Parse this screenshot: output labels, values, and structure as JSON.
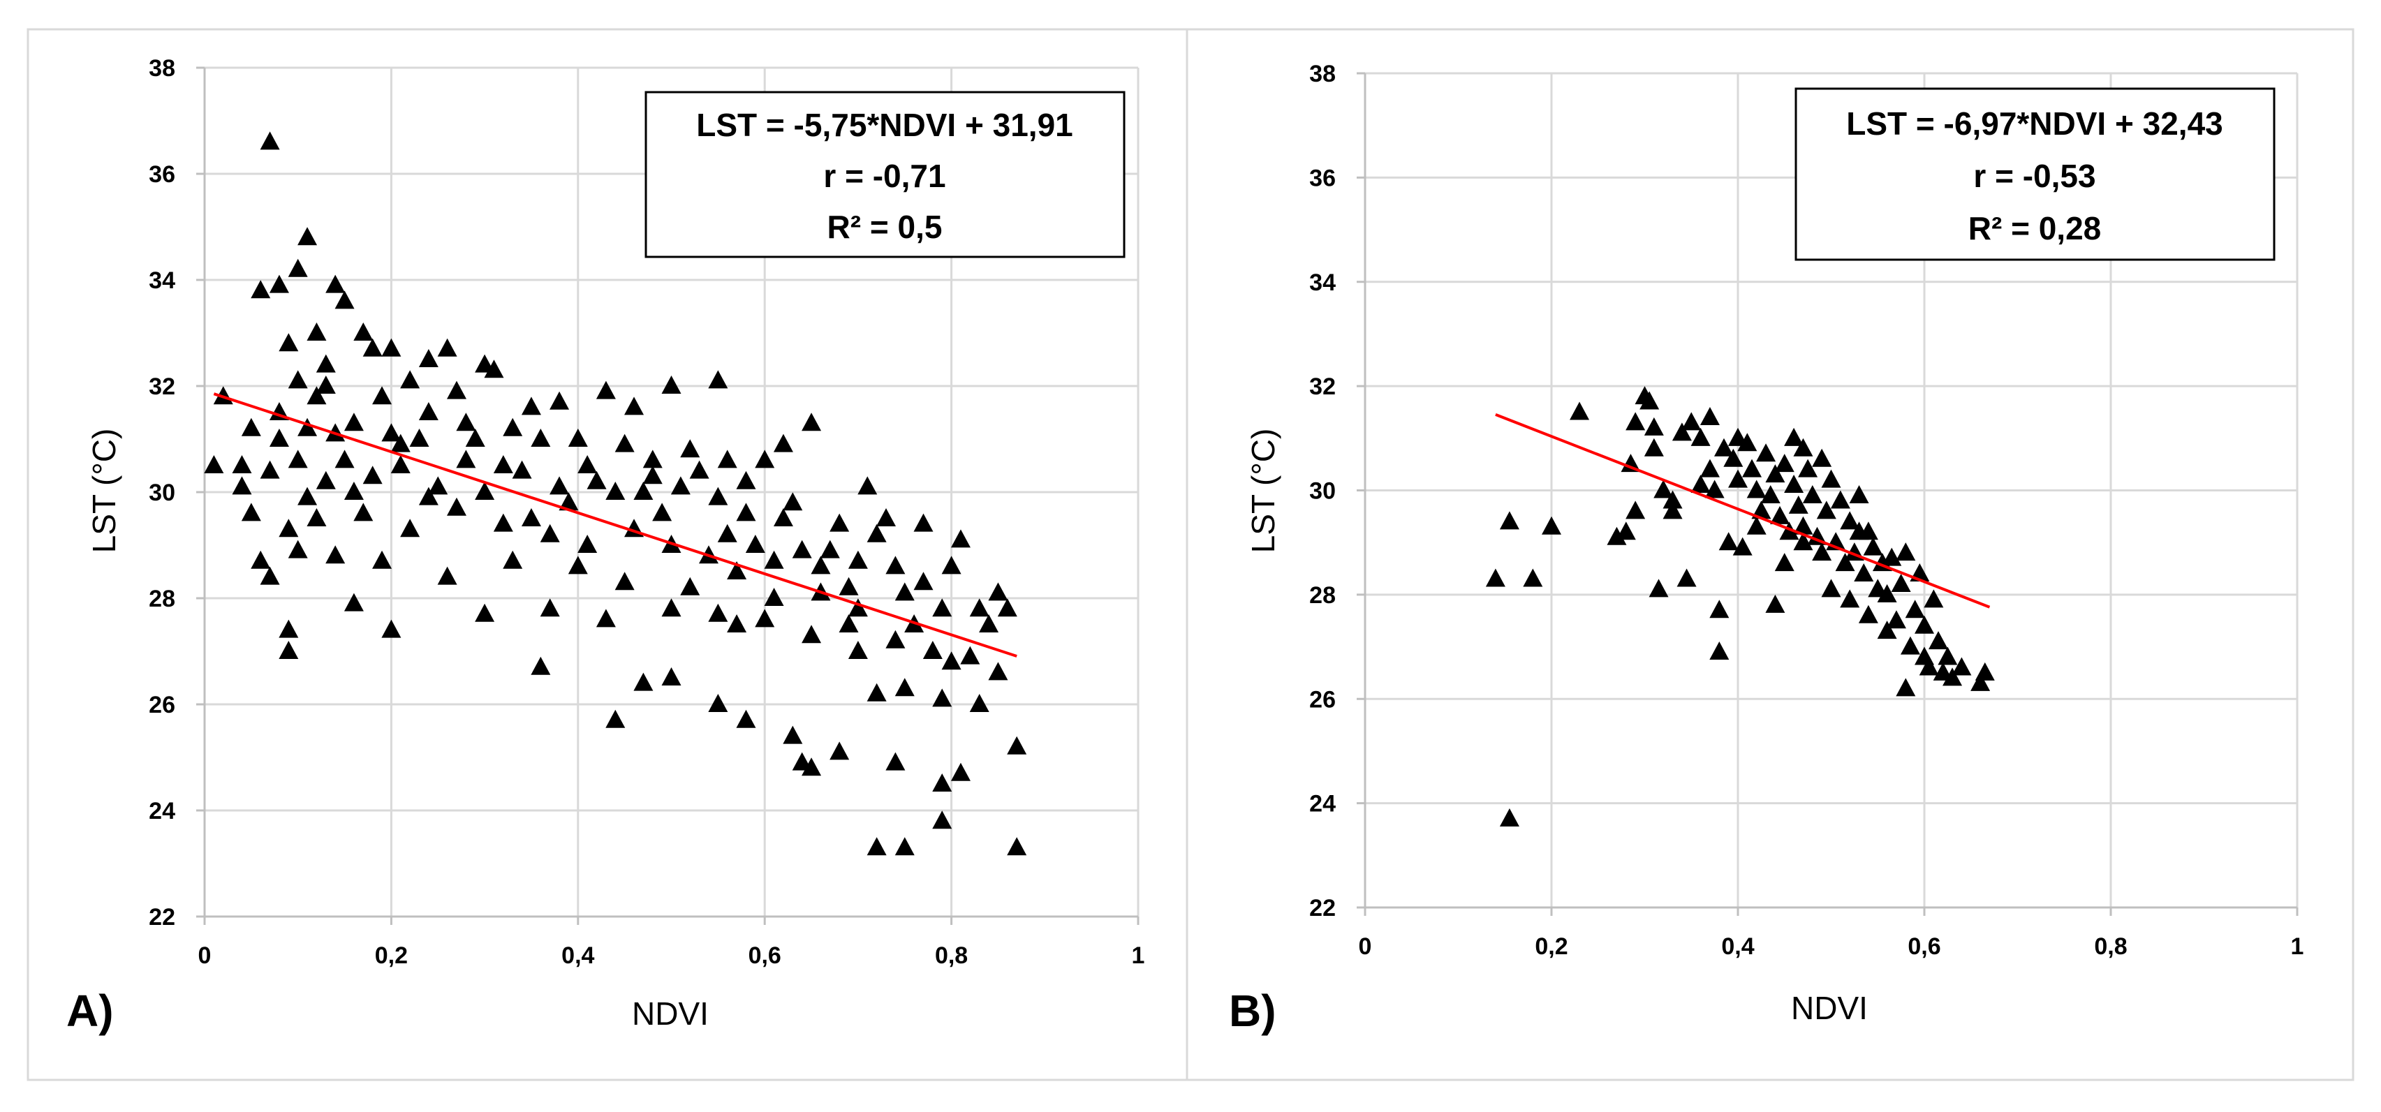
{
  "chart_data": [
    {
      "type": "scatter",
      "panel_label": "A)",
      "xlabel": "NDVI",
      "ylabel": "LST (°C)",
      "xlim": [
        0,
        1
      ],
      "ylim": [
        22,
        38
      ],
      "x_ticks": [
        "0",
        "0,2",
        "0,4",
        "0,6",
        "0,8",
        "1"
      ],
      "y_ticks": [
        "22",
        "24",
        "26",
        "28",
        "30",
        "32",
        "34",
        "36",
        "38"
      ],
      "grid": true,
      "annotation": [
        "LST = -5,75*NDVI + 31,91",
        "r = -0,71",
        "R² = 0,5"
      ],
      "trendline": {
        "slope": -5.75,
        "intercept": 31.91,
        "x_range": [
          0.01,
          0.87
        ],
        "color": "#ff0000"
      },
      "marker": "triangle",
      "points": [
        [
          0.07,
          36.6
        ],
        [
          0.11,
          34.8
        ],
        [
          0.1,
          34.2
        ],
        [
          0.06,
          33.8
        ],
        [
          0.08,
          33.9
        ],
        [
          0.14,
          33.9
        ],
        [
          0.15,
          33.6
        ],
        [
          0.12,
          33.0
        ],
        [
          0.17,
          33.0
        ],
        [
          0.2,
          32.7
        ],
        [
          0.18,
          32.7
        ],
        [
          0.24,
          32.5
        ],
        [
          0.26,
          32.7
        ],
        [
          0.3,
          32.4
        ],
        [
          0.31,
          32.3
        ],
        [
          0.09,
          32.8
        ],
        [
          0.13,
          32.4
        ],
        [
          0.1,
          32.1
        ],
        [
          0.22,
          32.1
        ],
        [
          0.27,
          31.9
        ],
        [
          0.35,
          31.6
        ],
        [
          0.38,
          31.7
        ],
        [
          0.43,
          31.9
        ],
        [
          0.46,
          31.6
        ],
        [
          0.5,
          32.0
        ],
        [
          0.55,
          32.1
        ],
        [
          0.02,
          31.8
        ],
        [
          0.05,
          31.2
        ],
        [
          0.08,
          31.5
        ],
        [
          0.12,
          31.8
        ],
        [
          0.16,
          31.3
        ],
        [
          0.2,
          31.1
        ],
        [
          0.23,
          31.0
        ],
        [
          0.28,
          31.3
        ],
        [
          0.33,
          31.2
        ],
        [
          0.36,
          31.0
        ],
        [
          0.4,
          31.0
        ],
        [
          0.45,
          30.9
        ],
        [
          0.48,
          30.6
        ],
        [
          0.52,
          30.8
        ],
        [
          0.56,
          30.6
        ],
        [
          0.6,
          30.6
        ],
        [
          0.62,
          30.9
        ],
        [
          0.65,
          31.3
        ],
        [
          0.01,
          30.5
        ],
        [
          0.04,
          30.1
        ],
        [
          0.07,
          30.4
        ],
        [
          0.1,
          30.6
        ],
        [
          0.13,
          30.2
        ],
        [
          0.15,
          30.6
        ],
        [
          0.18,
          30.3
        ],
        [
          0.21,
          30.5
        ],
        [
          0.25,
          30.1
        ],
        [
          0.3,
          30.0
        ],
        [
          0.34,
          30.4
        ],
        [
          0.38,
          30.1
        ],
        [
          0.42,
          30.2
        ],
        [
          0.47,
          30.0
        ],
        [
          0.51,
          30.1
        ],
        [
          0.55,
          29.9
        ],
        [
          0.58,
          29.6
        ],
        [
          0.63,
          29.8
        ],
        [
          0.68,
          29.4
        ],
        [
          0.71,
          30.1
        ],
        [
          0.05,
          29.6
        ],
        [
          0.09,
          29.3
        ],
        [
          0.12,
          29.5
        ],
        [
          0.17,
          29.6
        ],
        [
          0.22,
          29.3
        ],
        [
          0.27,
          29.7
        ],
        [
          0.32,
          29.4
        ],
        [
          0.37,
          29.2
        ],
        [
          0.41,
          29.0
        ],
        [
          0.46,
          29.3
        ],
        [
          0.5,
          29.0
        ],
        [
          0.54,
          28.8
        ],
        [
          0.59,
          29.0
        ],
        [
          0.64,
          28.9
        ],
        [
          0.7,
          28.7
        ],
        [
          0.74,
          28.6
        ],
        [
          0.77,
          29.4
        ],
        [
          0.81,
          29.1
        ],
        [
          0.06,
          28.7
        ],
        [
          0.1,
          28.9
        ],
        [
          0.14,
          28.8
        ],
        [
          0.19,
          28.7
        ],
        [
          0.26,
          28.4
        ],
        [
          0.33,
          28.7
        ],
        [
          0.4,
          28.6
        ],
        [
          0.45,
          28.3
        ],
        [
          0.52,
          28.2
        ],
        [
          0.57,
          28.5
        ],
        [
          0.61,
          28.0
        ],
        [
          0.66,
          28.1
        ],
        [
          0.7,
          27.8
        ],
        [
          0.75,
          28.1
        ],
        [
          0.79,
          27.8
        ],
        [
          0.83,
          27.8
        ],
        [
          0.86,
          27.8
        ],
        [
          0.07,
          28.4
        ],
        [
          0.16,
          27.9
        ],
        [
          0.3,
          27.7
        ],
        [
          0.37,
          27.8
        ],
        [
          0.43,
          27.6
        ],
        [
          0.5,
          27.8
        ],
        [
          0.55,
          27.7
        ],
        [
          0.6,
          27.6
        ],
        [
          0.65,
          27.3
        ],
        [
          0.7,
          27.0
        ],
        [
          0.74,
          27.2
        ],
        [
          0.78,
          27.0
        ],
        [
          0.82,
          26.9
        ],
        [
          0.85,
          26.6
        ],
        [
          0.09,
          27.4
        ],
        [
          0.09,
          27.0
        ],
        [
          0.2,
          27.4
        ],
        [
          0.36,
          26.7
        ],
        [
          0.44,
          25.7
        ],
        [
          0.47,
          26.4
        ],
        [
          0.5,
          26.5
        ],
        [
          0.55,
          26.0
        ],
        [
          0.58,
          25.7
        ],
        [
          0.63,
          25.4
        ],
        [
          0.64,
          24.9
        ],
        [
          0.68,
          25.1
        ],
        [
          0.72,
          26.2
        ],
        [
          0.75,
          26.3
        ],
        [
          0.79,
          26.1
        ],
        [
          0.83,
          26.0
        ],
        [
          0.87,
          25.2
        ],
        [
          0.72,
          23.3
        ],
        [
          0.75,
          23.3
        ],
        [
          0.79,
          23.8
        ],
        [
          0.79,
          24.5
        ],
        [
          0.81,
          24.7
        ],
        [
          0.87,
          23.3
        ],
        [
          0.74,
          24.9
        ],
        [
          0.65,
          24.8
        ],
        [
          0.57,
          27.5
        ],
        [
          0.69,
          28.2
        ],
        [
          0.72,
          29.2
        ],
        [
          0.28,
          30.6
        ],
        [
          0.24,
          31.5
        ],
        [
          0.19,
          31.8
        ],
        [
          0.14,
          31.1
        ],
        [
          0.11,
          29.9
        ],
        [
          0.35,
          29.5
        ],
        [
          0.39,
          29.8
        ],
        [
          0.48,
          30.3
        ],
        [
          0.53,
          30.4
        ],
        [
          0.58,
          30.2
        ],
        [
          0.62,
          29.5
        ],
        [
          0.67,
          28.9
        ],
        [
          0.73,
          29.5
        ],
        [
          0.77,
          28.3
        ],
        [
          0.8,
          28.6
        ],
        [
          0.84,
          27.5
        ],
        [
          0.85,
          28.1
        ],
        [
          0.04,
          30.5
        ],
        [
          0.08,
          31.0
        ],
        [
          0.11,
          31.2
        ],
        [
          0.13,
          32.0
        ],
        [
          0.16,
          30.0
        ],
        [
          0.21,
          30.9
        ],
        [
          0.24,
          29.9
        ],
        [
          0.29,
          31.0
        ],
        [
          0.32,
          30.5
        ],
        [
          0.41,
          30.5
        ],
        [
          0.44,
          30.0
        ],
        [
          0.49,
          29.6
        ],
        [
          0.56,
          29.2
        ],
        [
          0.61,
          28.7
        ],
        [
          0.66,
          28.6
        ],
        [
          0.69,
          27.5
        ],
        [
          0.76,
          27.5
        ],
        [
          0.8,
          26.8
        ]
      ]
    },
    {
      "type": "scatter",
      "panel_label": "B)",
      "xlabel": "NDVI",
      "ylabel": "LST (°C)",
      "xlim": [
        0,
        1
      ],
      "ylim": [
        22,
        38
      ],
      "x_ticks": [
        "0",
        "0,2",
        "0,4",
        "0,6",
        "0,8",
        "1"
      ],
      "y_ticks": [
        "22",
        "24",
        "26",
        "28",
        "30",
        "32",
        "34",
        "36",
        "38"
      ],
      "grid": true,
      "annotation": [
        "LST = -6,97*NDVI + 32,43",
        "r = -0,53",
        "R² = 0,28"
      ],
      "trendline": {
        "slope": -6.97,
        "intercept": 32.43,
        "x_range": [
          0.14,
          0.67
        ],
        "color": "#ff0000"
      },
      "marker": "triangle",
      "points": [
        [
          0.155,
          23.7
        ],
        [
          0.14,
          28.3
        ],
        [
          0.155,
          29.4
        ],
        [
          0.18,
          28.3
        ],
        [
          0.2,
          29.3
        ],
        [
          0.23,
          31.5
        ],
        [
          0.27,
          29.1
        ],
        [
          0.28,
          29.2
        ],
        [
          0.285,
          30.5
        ],
        [
          0.29,
          31.3
        ],
        [
          0.29,
          29.6
        ],
        [
          0.3,
          31.8
        ],
        [
          0.305,
          31.7
        ],
        [
          0.31,
          31.2
        ],
        [
          0.31,
          30.8
        ],
        [
          0.315,
          28.1
        ],
        [
          0.32,
          30.0
        ],
        [
          0.33,
          29.8
        ],
        [
          0.34,
          31.1
        ],
        [
          0.345,
          28.3
        ],
        [
          0.35,
          31.3
        ],
        [
          0.36,
          31.0
        ],
        [
          0.37,
          31.4
        ],
        [
          0.37,
          30.4
        ],
        [
          0.375,
          30.0
        ],
        [
          0.38,
          26.9
        ],
        [
          0.38,
          27.7
        ],
        [
          0.385,
          30.8
        ],
        [
          0.39,
          29.0
        ],
        [
          0.395,
          30.6
        ],
        [
          0.4,
          31.0
        ],
        [
          0.4,
          30.2
        ],
        [
          0.405,
          28.9
        ],
        [
          0.41,
          30.9
        ],
        [
          0.415,
          30.4
        ],
        [
          0.42,
          30.0
        ],
        [
          0.425,
          29.6
        ],
        [
          0.43,
          30.7
        ],
        [
          0.435,
          29.9
        ],
        [
          0.44,
          27.8
        ],
        [
          0.44,
          30.3
        ],
        [
          0.445,
          29.5
        ],
        [
          0.45,
          30.5
        ],
        [
          0.455,
          29.2
        ],
        [
          0.46,
          31.0
        ],
        [
          0.46,
          30.1
        ],
        [
          0.465,
          29.7
        ],
        [
          0.47,
          30.8
        ],
        [
          0.47,
          29.3
        ],
        [
          0.475,
          30.4
        ],
        [
          0.48,
          29.9
        ],
        [
          0.485,
          29.1
        ],
        [
          0.49,
          30.6
        ],
        [
          0.49,
          28.8
        ],
        [
          0.495,
          29.6
        ],
        [
          0.5,
          30.2
        ],
        [
          0.5,
          28.1
        ],
        [
          0.505,
          29.0
        ],
        [
          0.51,
          29.8
        ],
        [
          0.515,
          28.6
        ],
        [
          0.52,
          29.4
        ],
        [
          0.52,
          27.9
        ],
        [
          0.525,
          28.8
        ],
        [
          0.53,
          29.9
        ],
        [
          0.535,
          28.4
        ],
        [
          0.54,
          29.2
        ],
        [
          0.54,
          27.6
        ],
        [
          0.545,
          28.9
        ],
        [
          0.55,
          28.1
        ],
        [
          0.555,
          28.6
        ],
        [
          0.56,
          27.3
        ],
        [
          0.565,
          28.7
        ],
        [
          0.57,
          27.5
        ],
        [
          0.575,
          28.2
        ],
        [
          0.58,
          26.2
        ],
        [
          0.58,
          28.8
        ],
        [
          0.585,
          27.0
        ],
        [
          0.59,
          27.7
        ],
        [
          0.595,
          28.4
        ],
        [
          0.6,
          26.8
        ],
        [
          0.6,
          27.4
        ],
        [
          0.605,
          26.6
        ],
        [
          0.61,
          27.9
        ],
        [
          0.615,
          27.1
        ],
        [
          0.62,
          26.5
        ],
        [
          0.625,
          26.8
        ],
        [
          0.63,
          26.4
        ],
        [
          0.64,
          26.6
        ],
        [
          0.66,
          26.3
        ],
        [
          0.665,
          26.5
        ],
        [
          0.42,
          29.3
        ],
        [
          0.45,
          28.6
        ],
        [
          0.33,
          29.6
        ],
        [
          0.36,
          30.1
        ],
        [
          0.47,
          29.0
        ],
        [
          0.53,
          29.2
        ],
        [
          0.56,
          28.0
        ]
      ]
    }
  ]
}
